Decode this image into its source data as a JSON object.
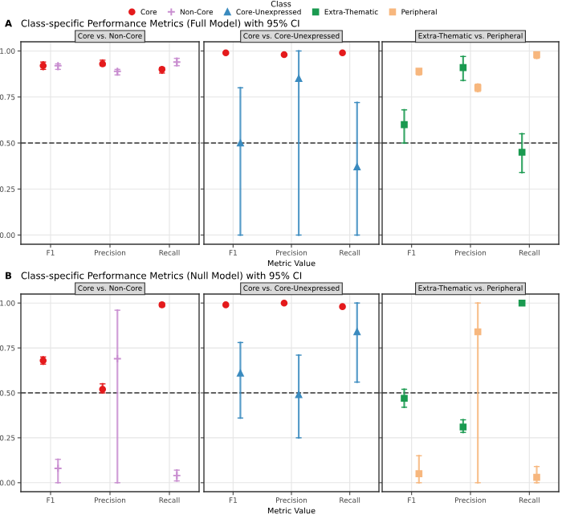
{
  "chart_data": [
    {
      "type": "scatter",
      "title": "Core vs. Non-Core",
      "annotations": [
        "A",
        "Class-specific Performance Metrics (Full Model) with 95% CI"
      ],
      "legend": "top",
      "legend_title": "Class",
      "categories": [
        "F1",
        "Precision",
        "Recall"
      ],
      "ylim": [
        -0.05,
        1.05
      ],
      "yticks": [
        {
          "value": 0,
          "label": "0.00"
        },
        {
          "value": 0.25,
          "label": "0.25"
        },
        {
          "value": 0.5,
          "label": "0.50"
        },
        {
          "value": 0.75,
          "label": "0.75"
        },
        {
          "value": 1,
          "label": "1.00"
        }
      ],
      "grid": true,
      "ref_lines": [
        {
          "axis": "y",
          "value": 0.5,
          "line_style": "dashed",
          "color": "#333333"
        }
      ],
      "series": [
        {
          "name": "Core",
          "color": "#e41a1c",
          "marker": "circle",
          "values": [
            0.92,
            0.93,
            0.9
          ],
          "errors": [
            [
              0.9,
              0.94
            ],
            [
              0.92,
              0.95
            ],
            [
              0.88,
              0.91
            ]
          ]
        },
        {
          "name": "Non-Core",
          "color": "#c98ed0",
          "marker": "cross",
          "values": [
            0.92,
            0.89,
            0.94
          ],
          "errors": [
            [
              0.9,
              0.93
            ],
            [
              0.87,
              0.9
            ],
            [
              0.92,
              0.96
            ]
          ]
        }
      ]
    },
    {
      "type": "scatter",
      "title": "Core vs. Core-Unexpressed",
      "xlabel": "Metric Value",
      "legend": "top",
      "tick_labels": "x",
      "categories": [
        "F1",
        "Precision",
        "Recall"
      ],
      "ylim": [
        -0.05,
        1.05
      ],
      "yticks": [
        0,
        0.25,
        0.5,
        0.75,
        1
      ],
      "grid": true,
      "ref_lines": [
        {
          "axis": "y",
          "value": 0.5,
          "line_style": "dashed",
          "color": "#333333"
        }
      ],
      "series": [
        {
          "name": "Core",
          "color": "#e41a1c",
          "marker": "circle",
          "values": [
            0.99,
            0.98,
            0.99
          ]
        },
        {
          "name": "Core-Unexpressed",
          "color": "#3b8bbf",
          "marker": "triangle",
          "values": [
            0.5,
            0.85,
            0.37
          ],
          "errors": [
            [
              0.0,
              0.8
            ],
            [
              0.0,
              1.0
            ],
            [
              0.0,
              0.72
            ]
          ]
        }
      ]
    },
    {
      "type": "scatter",
      "title": "Extra-Thematic vs. Peripheral",
      "legend": "top",
      "tick_labels": "x",
      "categories": [
        "F1",
        "Precision",
        "Recall"
      ],
      "ylim": [
        -0.05,
        1.05
      ],
      "yticks": [
        0,
        0.25,
        0.5,
        0.75,
        1
      ],
      "grid": true,
      "ref_lines": [
        {
          "axis": "y",
          "value": 0.5,
          "line_style": "dashed",
          "color": "#333333"
        }
      ],
      "series": [
        {
          "name": "Extra-Thematic",
          "color": "#1a9a50",
          "marker": "square",
          "values": [
            0.6,
            0.91,
            0.45
          ],
          "errors": [
            [
              0.5,
              0.68
            ],
            [
              0.84,
              0.97
            ],
            [
              0.34,
              0.55
            ]
          ]
        },
        {
          "name": "Peripheral",
          "color": "#f7b77e",
          "marker": "square",
          "values": [
            0.89,
            0.8,
            0.98
          ],
          "errors": [
            [
              0.87,
              0.9
            ],
            [
              0.78,
              0.82
            ],
            [
              0.96,
              0.99
            ]
          ]
        }
      ]
    },
    {
      "type": "scatter",
      "title": "Core vs. Non-Core",
      "annotations": [
        "B",
        "Class-specific Performance Metrics (Null Model) with 95% CI"
      ],
      "categories": [
        "F1",
        "Precision",
        "Recall"
      ],
      "ylim": [
        -0.05,
        1.05
      ],
      "yticks": [
        {
          "value": 0,
          "label": "0.00"
        },
        {
          "value": 0.25,
          "label": "0.25"
        },
        {
          "value": 0.5,
          "label": "0.50"
        },
        {
          "value": 0.75,
          "label": "0.75"
        },
        {
          "value": 1,
          "label": "1.00"
        }
      ],
      "grid": true,
      "ref_lines": [
        {
          "axis": "y",
          "value": 0.5,
          "line_style": "dashed",
          "color": "#333333"
        }
      ],
      "series": [
        {
          "name": "Core",
          "color": "#e41a1c",
          "marker": "circle",
          "values": [
            0.68,
            0.52,
            0.99
          ],
          "errors": [
            [
              0.66,
              0.7
            ],
            [
              0.5,
              0.55
            ],
            [
              0.98,
              1.0
            ]
          ]
        },
        {
          "name": "Non-Core",
          "color": "#c98ed0",
          "marker": "cross",
          "values": [
            0.08,
            0.69,
            0.04
          ],
          "errors": [
            [
              0.0,
              0.13
            ],
            [
              0.0,
              0.96
            ],
            [
              0.01,
              0.07
            ]
          ]
        }
      ]
    },
    {
      "type": "scatter",
      "title": "Core vs. Core-Unexpressed",
      "xlabel": "Metric Value",
      "tick_labels": "x",
      "categories": [
        "F1",
        "Precision",
        "Recall"
      ],
      "ylim": [
        -0.05,
        1.05
      ],
      "yticks": [
        0,
        0.25,
        0.5,
        0.75,
        1
      ],
      "grid": true,
      "ref_lines": [
        {
          "axis": "y",
          "value": 0.5,
          "line_style": "dashed",
          "color": "#333333"
        }
      ],
      "series": [
        {
          "name": "Core",
          "color": "#e41a1c",
          "marker": "circle",
          "values": [
            0.99,
            1.0,
            0.98
          ]
        },
        {
          "name": "Core-Unexpressed",
          "color": "#3b8bbf",
          "marker": "triangle",
          "values": [
            0.61,
            0.49,
            0.84
          ],
          "errors": [
            [
              0.36,
              0.78
            ],
            [
              0.25,
              0.71
            ],
            [
              0.56,
              1.0
            ]
          ]
        }
      ]
    },
    {
      "type": "scatter",
      "title": "Extra-Thematic vs. Peripheral",
      "tick_labels": "x",
      "categories": [
        "F1",
        "Precision",
        "Recall"
      ],
      "ylim": [
        -0.05,
        1.05
      ],
      "yticks": [
        0,
        0.25,
        0.5,
        0.75,
        1
      ],
      "grid": true,
      "ref_lines": [
        {
          "axis": "y",
          "value": 0.5,
          "line_style": "dashed",
          "color": "#333333"
        }
      ],
      "series": [
        {
          "name": "Extra-Thematic",
          "color": "#1a9a50",
          "marker": "square",
          "values": [
            0.47,
            0.31,
            1.0
          ],
          "errors": [
            [
              0.42,
              0.52
            ],
            [
              0.28,
              0.35
            ],
            [
              0.99,
              1.0
            ]
          ]
        },
        {
          "name": "Peripheral",
          "color": "#f7b77e",
          "marker": "square",
          "values": [
            0.05,
            0.84,
            0.03
          ],
          "errors": [
            [
              0.0,
              0.15
            ],
            [
              0.0,
              1.0
            ],
            [
              0.0,
              0.09
            ]
          ]
        }
      ]
    }
  ]
}
